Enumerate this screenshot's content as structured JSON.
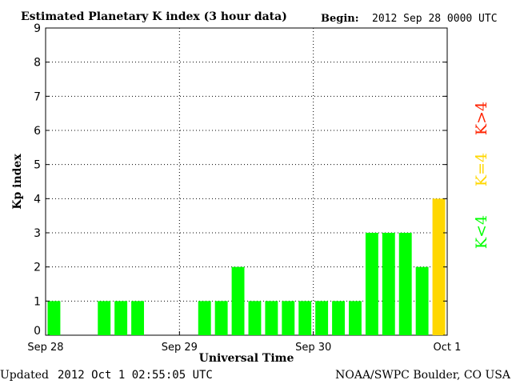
{
  "header": {
    "title": "Estimated Planetary K index (3 hour data)",
    "begin_label": "Begin:",
    "begin_value": "2012 Sep 28 0000 UTC"
  },
  "footer": {
    "updated_label": "Updated",
    "updated_value": "2012 Oct  1 02:55:05 UTC",
    "source": "NOAA/SWPC Boulder, CO USA"
  },
  "legend": {
    "low": "K<4",
    "mid": "K=4",
    "high": "K>4"
  },
  "colors": {
    "low": "#00ff00",
    "mid": "#ffd700",
    "high": "#ff2200"
  },
  "chart_data": {
    "type": "bar",
    "title": "Estimated Planetary K index (3 hour data)",
    "xlabel": "Universal Time",
    "ylabel": "Kp index",
    "ylim": [
      0,
      9
    ],
    "yticks": [
      "0",
      "1",
      "2",
      "3",
      "4",
      "5",
      "6",
      "7",
      "8",
      "9"
    ],
    "xticks": [
      "Sep 28",
      "Sep 29",
      "Sep 30",
      "Oct 1"
    ],
    "grid": true,
    "interval_hours": 3,
    "categories": [
      "2012-09-28 00:00",
      "2012-09-28 03:00",
      "2012-09-28 06:00",
      "2012-09-28 09:00",
      "2012-09-28 12:00",
      "2012-09-28 15:00",
      "2012-09-28 18:00",
      "2012-09-28 21:00",
      "2012-09-29 00:00",
      "2012-09-29 03:00",
      "2012-09-29 06:00",
      "2012-09-29 09:00",
      "2012-09-29 12:00",
      "2012-09-29 15:00",
      "2012-09-29 18:00",
      "2012-09-29 21:00",
      "2012-09-30 00:00",
      "2012-09-30 03:00",
      "2012-09-30 06:00",
      "2012-09-30 09:00",
      "2012-09-30 12:00",
      "2012-09-30 15:00",
      "2012-09-30 18:00",
      "2012-09-30 21:00"
    ],
    "values": [
      1,
      0,
      0,
      1,
      1,
      1,
      0,
      0,
      0,
      1,
      1,
      2,
      1,
      1,
      1,
      1,
      1,
      1,
      1,
      3,
      3,
      3,
      2,
      4
    ]
  }
}
